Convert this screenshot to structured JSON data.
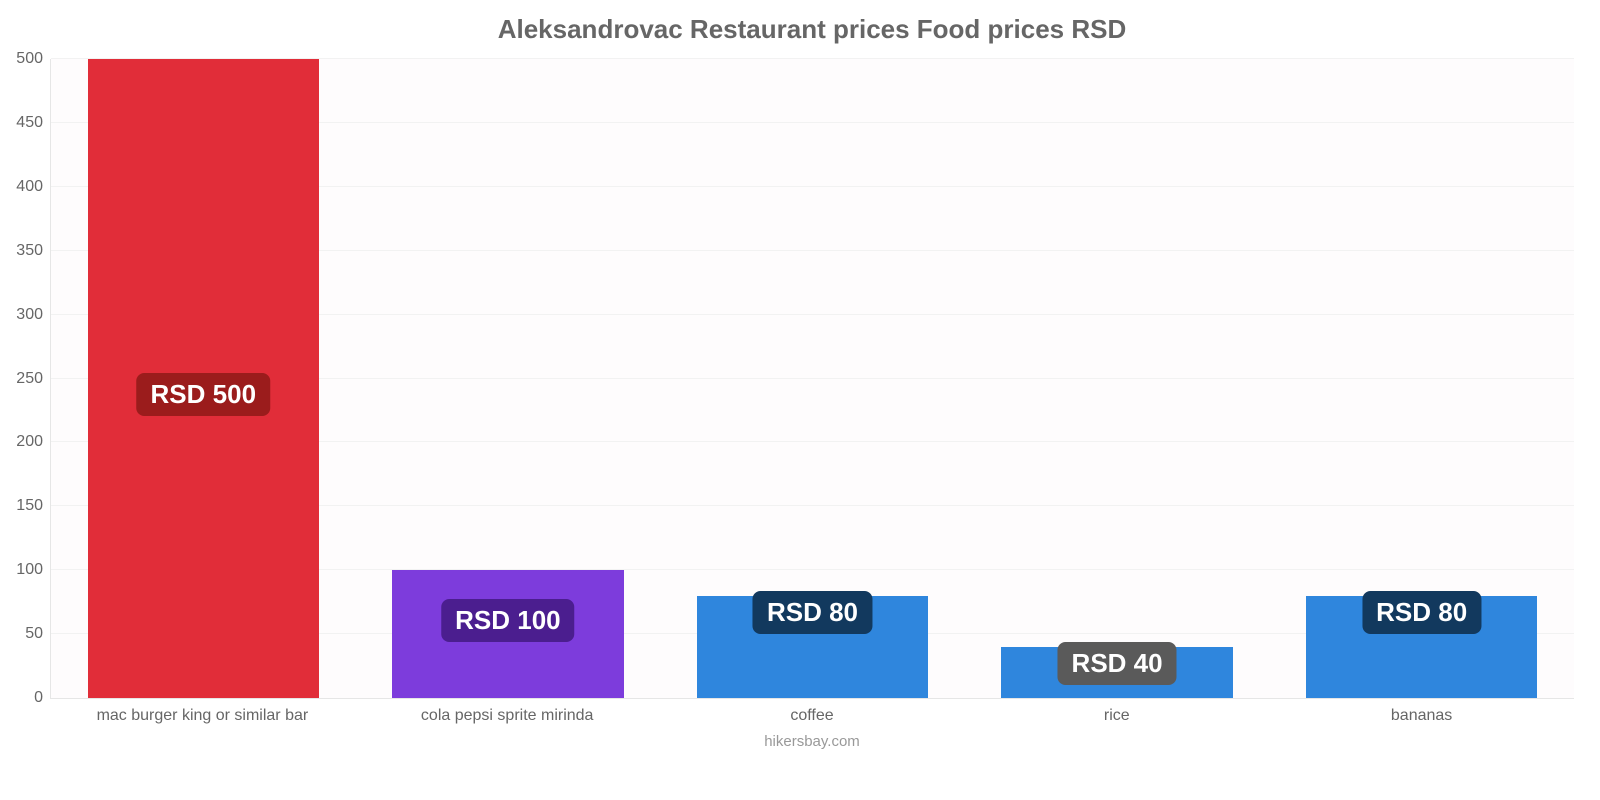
{
  "chart": {
    "type": "bar",
    "title": "Aleksandrovac Restaurant prices Food prices RSD",
    "title_color": "#666666",
    "title_fontsize": 26,
    "background_color": "#fefcfd",
    "grid_color": "#f2f2f2",
    "axis_line_color": "#e6e6e6",
    "ylim": [
      0,
      500
    ],
    "ytick_step": 50,
    "yticks": [
      0,
      50,
      100,
      150,
      200,
      250,
      300,
      350,
      400,
      450,
      500
    ],
    "xlabel_color": "#666666",
    "xlabel_fontsize": 16,
    "ylabel_color": "#666666",
    "ylabel_fontsize": 16,
    "bar_width_pct": 76,
    "value_label_fontsize": 26,
    "value_label_text_color": "#ffffff",
    "footer": "hikersbay.com",
    "footer_color": "#999999",
    "items": [
      {
        "category": "mac burger king or similar bar",
        "value": 500,
        "value_label": "RSD 500",
        "bar_color": "#e12d39",
        "badge_bg": "#9b1c1c"
      },
      {
        "category": "cola pepsi sprite mirinda",
        "value": 100,
        "value_label": "RSD 100",
        "bar_color": "#7d3cdc",
        "badge_bg": "#4b1e8f"
      },
      {
        "category": "coffee",
        "value": 80,
        "value_label": "RSD 80",
        "bar_color": "#2f86dd",
        "badge_bg": "#12395e"
      },
      {
        "category": "rice",
        "value": 40,
        "value_label": "RSD 40",
        "bar_color": "#2f86dd",
        "badge_bg": "#5a5a5a"
      },
      {
        "category": "bananas",
        "value": 80,
        "value_label": "RSD 80",
        "bar_color": "#2f86dd",
        "badge_bg": "#12395e"
      }
    ]
  }
}
